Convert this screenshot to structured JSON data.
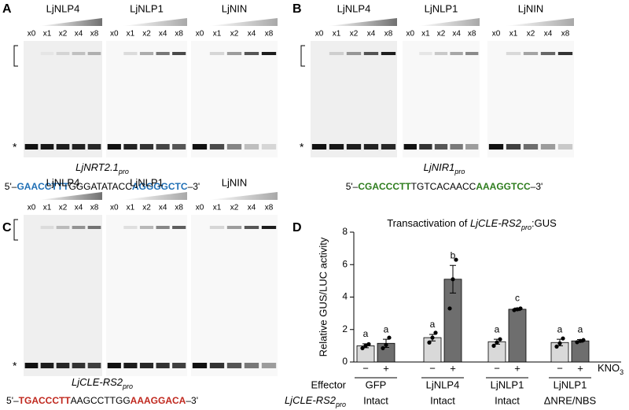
{
  "panels": [
    {
      "letter": "A",
      "marker": "*",
      "gels": [
        {
          "name": "LjNLP4",
          "lanes": [
            "x0",
            "x1",
            "x2",
            "x4",
            "x8"
          ]
        },
        {
          "name": "LjNLP1",
          "lanes": [
            "x0",
            "x1",
            "x2",
            "x4",
            "x8"
          ]
        },
        {
          "name": "LjNIN",
          "lanes": [
            "x0",
            "x1",
            "x2",
            "x4",
            "x8"
          ]
        }
      ],
      "promoter": [
        "LjNRT2.1",
        "pro"
      ],
      "sequence": [
        {
          "text": "5'–",
          "color": "#000000"
        },
        {
          "text": "GAACCTTT",
          "color": "#1f6fb5"
        },
        {
          "text": "GGGATATACC",
          "color": "#000000"
        },
        {
          "text": "AGGGGCTC",
          "color": "#1f6fb5"
        },
        {
          "text": "–3'",
          "color": "#000000"
        }
      ]
    },
    {
      "letter": "B",
      "marker": "*",
      "gels": [
        {
          "name": "LjNLP4",
          "lanes": [
            "x0",
            "x1",
            "x2",
            "x4",
            "x8"
          ]
        },
        {
          "name": "LjNLP1",
          "lanes": [
            "x0",
            "x1",
            "x2",
            "x4",
            "x8"
          ]
        },
        {
          "name": "LjNIN",
          "lanes": [
            "x0",
            "x1",
            "x2",
            "x4",
            "x8"
          ]
        }
      ],
      "promoter": [
        "LjNIR1",
        "pro"
      ],
      "sequence": [
        {
          "text": "5'–",
          "color": "#000000"
        },
        {
          "text": "CGACCCTT",
          "color": "#2e7d1e"
        },
        {
          "text": "TGTCACAACC",
          "color": "#000000"
        },
        {
          "text": "AAAGGTCC",
          "color": "#2e7d1e"
        },
        {
          "text": "–3'",
          "color": "#000000"
        }
      ]
    },
    {
      "letter": "C",
      "marker": "*",
      "gels": [
        {
          "name": "LjNLP4",
          "lanes": [
            "x0",
            "x1",
            "x2",
            "x4",
            "x8"
          ]
        },
        {
          "name": "LjNLP1",
          "lanes": [
            "x0",
            "x1",
            "x2",
            "x4",
            "x8"
          ]
        },
        {
          "name": "LjNIN",
          "lanes": [
            "x0",
            "x1",
            "x2",
            "x4",
            "x8"
          ]
        }
      ],
      "promoter": [
        "LjCLE-RS2",
        "pro"
      ],
      "sequence": [
        {
          "text": "5'–",
          "color": "#000000"
        },
        {
          "text": "TGACCCTT",
          "color": "#c0281e"
        },
        {
          "text": "AAGCCTTGG",
          "color": "#000000"
        },
        {
          "text": "AAAGGACA",
          "color": "#c0281e"
        },
        {
          "text": "–3'",
          "color": "#000000"
        }
      ]
    }
  ],
  "chart_data": {
    "type": "bar",
    "letter": "D",
    "title": [
      "Transactivation of ",
      "LjCLE-RS2",
      "pro",
      ":GUS"
    ],
    "ylabel": "Relative GUS/LUC activity",
    "ylim": [
      0,
      8
    ],
    "yticks": [
      0,
      2,
      4,
      6,
      8
    ],
    "categories": [
      "GFP",
      "LjNLP4",
      "LjNLP1",
      "LjNLP1"
    ],
    "constructs": [
      "Intact",
      "Intact",
      "Intact",
      "ΔNRE/NBS"
    ],
    "effector_label": "Effector",
    "construct_label": [
      "LjCLE-RS2",
      "pro"
    ],
    "treatment_label": [
      "KNO",
      "3"
    ],
    "series": [
      {
        "name": "−",
        "color": "#d9d9d9",
        "values": [
          1.0,
          1.5,
          1.25,
          1.2
        ],
        "errors": [
          0.12,
          0.2,
          0.15,
          0.2
        ],
        "letters": [
          "a",
          "a",
          "a",
          "a"
        ],
        "points": [
          [
            0.85,
            1.0,
            1.1
          ],
          [
            1.2,
            1.5,
            1.8
          ],
          [
            1.0,
            1.2,
            1.4
          ],
          [
            0.95,
            1.15,
            1.45
          ]
        ]
      },
      {
        "name": "+",
        "color": "#6e6e6e",
        "values": [
          1.15,
          5.1,
          3.25,
          1.3
        ],
        "errors": [
          0.25,
          0.85,
          0.08,
          0.08
        ],
        "letters": [
          "a",
          "b",
          "c",
          "a"
        ],
        "points": [
          [
            0.85,
            1.05,
            1.5
          ],
          [
            3.3,
            5.1,
            6.3
          ],
          [
            3.2,
            3.25,
            3.3
          ],
          [
            1.22,
            1.3,
            1.35
          ]
        ]
      }
    ]
  }
}
